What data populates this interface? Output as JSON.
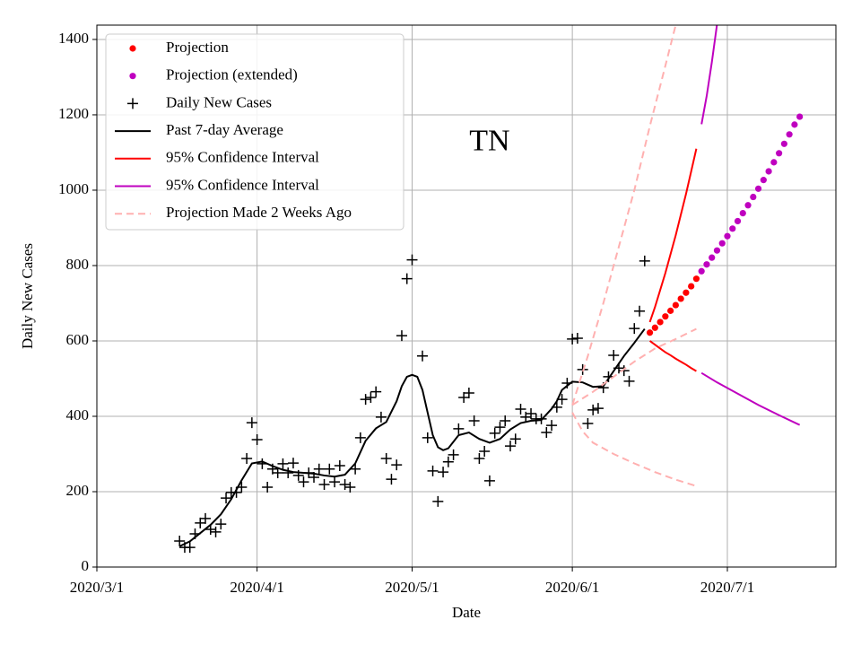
{
  "chart_data": {
    "type": "line",
    "xlabel": "Date",
    "ylabel": "Daily New Cases",
    "annotations": [
      {
        "text": "TN",
        "x": "2020-05-16",
        "y": 1124
      }
    ],
    "xlim": [
      "2020-03-01",
      "2020-07-22"
    ],
    "xticks": [
      {
        "value": "2020-03-01",
        "label": "2020/3/1"
      },
      {
        "value": "2020-04-01",
        "label": "2020/4/1"
      },
      {
        "value": "2020-05-01",
        "label": "2020/5/1"
      },
      {
        "value": "2020-06-01",
        "label": "2020/6/1"
      },
      {
        "value": "2020-07-01",
        "label": "2020/7/1"
      }
    ],
    "ylim": [
      0,
      1438
    ],
    "yticks": [
      0,
      200,
      400,
      600,
      800,
      1000,
      1200,
      1400
    ],
    "grid": true,
    "legend": "upper left",
    "series": [
      {
        "name": "Projection",
        "color": "#ff0000",
        "kind": "dots",
        "x": [
          "2020-06-16",
          "2020-06-17",
          "2020-06-18",
          "2020-06-19",
          "2020-06-20",
          "2020-06-21",
          "2020-06-22",
          "2020-06-23",
          "2020-06-24",
          "2020-06-25"
        ],
        "values": [
          622,
          635,
          650,
          665,
          680,
          695,
          712,
          728,
          745,
          765
        ]
      },
      {
        "name": "Projection (extended)",
        "color": "#bf00bf",
        "kind": "dots",
        "x": [
          "2020-06-26",
          "2020-06-27",
          "2020-06-28",
          "2020-06-29",
          "2020-06-30",
          "2020-07-01",
          "2020-07-02",
          "2020-07-03",
          "2020-07-04",
          "2020-07-05",
          "2020-07-06",
          "2020-07-07",
          "2020-07-08",
          "2020-07-09",
          "2020-07-10",
          "2020-07-11",
          "2020-07-12",
          "2020-07-13",
          "2020-07-14",
          "2020-07-15"
        ],
        "values": [
          785,
          803,
          821,
          840,
          859,
          878,
          898,
          918,
          939,
          960,
          982,
          1004,
          1027,
          1050,
          1074,
          1098,
          1123,
          1148,
          1174,
          1195
        ]
      },
      {
        "name": "Daily New Cases",
        "color": "#000000",
        "kind": "plus",
        "x": [
          "2020-03-17",
          "2020-03-18",
          "2020-03-19",
          "2020-03-20",
          "2020-03-21",
          "2020-03-22",
          "2020-03-23",
          "2020-03-24",
          "2020-03-25",
          "2020-03-26",
          "2020-03-27",
          "2020-03-28",
          "2020-03-29",
          "2020-03-30",
          "2020-03-31",
          "2020-04-01",
          "2020-04-02",
          "2020-04-03",
          "2020-04-04",
          "2020-04-05",
          "2020-04-06",
          "2020-04-07",
          "2020-04-08",
          "2020-04-09",
          "2020-04-10",
          "2020-04-11",
          "2020-04-12",
          "2020-04-13",
          "2020-04-14",
          "2020-04-15",
          "2020-04-16",
          "2020-04-17",
          "2020-04-18",
          "2020-04-19",
          "2020-04-20",
          "2020-04-21",
          "2020-04-22",
          "2020-04-23",
          "2020-04-24",
          "2020-04-25",
          "2020-04-26",
          "2020-04-27",
          "2020-04-28",
          "2020-04-29",
          "2020-04-30",
          "2020-05-01",
          "2020-05-03",
          "2020-05-04",
          "2020-05-05",
          "2020-05-06",
          "2020-05-07",
          "2020-05-08",
          "2020-05-09",
          "2020-05-10",
          "2020-05-11",
          "2020-05-12",
          "2020-05-13",
          "2020-05-14",
          "2020-05-15",
          "2020-05-16",
          "2020-05-17",
          "2020-05-18",
          "2020-05-19",
          "2020-05-20",
          "2020-05-21",
          "2020-05-22",
          "2020-05-23",
          "2020-05-24",
          "2020-05-25",
          "2020-05-26",
          "2020-05-27",
          "2020-05-28",
          "2020-05-29",
          "2020-05-30",
          "2020-05-31",
          "2020-06-01",
          "2020-06-02",
          "2020-06-03",
          "2020-06-04",
          "2020-06-05",
          "2020-06-06",
          "2020-06-07",
          "2020-06-08",
          "2020-06-09",
          "2020-06-10",
          "2020-06-11",
          "2020-06-12",
          "2020-06-13",
          "2020-06-14",
          "2020-06-15"
        ],
        "values": [
          69,
          52,
          52,
          88,
          117,
          129,
          100,
          93,
          114,
          183,
          198,
          198,
          212,
          288,
          383,
          338,
          274,
          212,
          260,
          250,
          274,
          250,
          276,
          243,
          226,
          250,
          238,
          260,
          219,
          260,
          226,
          269,
          219,
          212,
          260,
          343,
          445,
          450,
          465,
          398,
          288,
          233,
          271,
          614,
          765,
          815,
          560,
          343,
          255,
          174,
          252,
          279,
          298,
          367,
          450,
          462,
          388,
          288,
          307,
          229,
          355,
          371,
          388,
          321,
          340,
          419,
          398,
          407,
          393,
          393,
          357,
          376,
          424,
          445,
          488,
          605,
          607,
          524,
          381,
          417,
          421,
          476,
          505,
          562,
          528,
          521,
          493,
          633,
          679,
          812
        ]
      },
      {
        "name": "Past 7-day Average",
        "color": "#000000",
        "kind": "line",
        "lines": [
          {
            "x": [
              "2020-03-17",
              "2020-03-19",
              "2020-03-21",
              "2020-03-23",
              "2020-03-25",
              "2020-03-27",
              "2020-03-29",
              "2020-03-31",
              "2020-04-02",
              "2020-04-04",
              "2020-04-06",
              "2020-04-08",
              "2020-04-10",
              "2020-04-12",
              "2020-04-14",
              "2020-04-16",
              "2020-04-18",
              "2020-04-20",
              "2020-04-22",
              "2020-04-24",
              "2020-04-26",
              "2020-04-28",
              "2020-04-29",
              "2020-04-30",
              "2020-05-01",
              "2020-05-02",
              "2020-05-03",
              "2020-05-04",
              "2020-05-05",
              "2020-05-06",
              "2020-05-07",
              "2020-05-08",
              "2020-05-10",
              "2020-05-12",
              "2020-05-14",
              "2020-05-16",
              "2020-05-18",
              "2020-05-20",
              "2020-05-22",
              "2020-05-24",
              "2020-05-26",
              "2020-05-28",
              "2020-05-29",
              "2020-05-30",
              "2020-06-01",
              "2020-06-03",
              "2020-06-05",
              "2020-06-07",
              "2020-06-09",
              "2020-06-11",
              "2020-06-13",
              "2020-06-15"
            ],
            "values": [
              55,
              68,
              90,
              112,
              140,
              180,
              230,
              275,
              280,
              268,
              258,
              252,
              250,
              248,
              243,
              240,
              245,
              275,
              335,
              368,
              385,
              440,
              480,
              505,
              510,
              505,
              470,
              410,
              350,
              318,
              310,
              315,
              350,
              357,
              340,
              330,
              340,
              365,
              382,
              388,
              390,
              420,
              440,
              470,
              492,
              490,
              478,
              480,
              520,
              560,
              595,
              632
            ]
          }
        ]
      },
      {
        "name": "95% Confidence Interval",
        "color": "#ff0000",
        "kind": "line",
        "lines": [
          {
            "x": [
              "2020-06-16",
              "2020-06-17",
              "2020-06-18",
              "2020-06-19",
              "2020-06-20",
              "2020-06-21",
              "2020-06-22",
              "2020-06-23",
              "2020-06-24",
              "2020-06-25"
            ],
            "values": [
              650,
              690,
              735,
              780,
              830,
              880,
              935,
              990,
              1050,
              1110
            ]
          },
          {
            "x": [
              "2020-06-16",
              "2020-06-17",
              "2020-06-18",
              "2020-06-19",
              "2020-06-20",
              "2020-06-21",
              "2020-06-22",
              "2020-06-23",
              "2020-06-24",
              "2020-06-25"
            ],
            "values": [
              600,
              590,
              580,
              570,
              562,
              553,
              545,
              537,
              528,
              520
            ]
          }
        ]
      },
      {
        "name": "95% Confidence Interval",
        "color": "#bf00bf",
        "kind": "line",
        "lines": [
          {
            "x": [
              "2020-06-26",
              "2020-06-27",
              "2020-06-28",
              "2020-06-29"
            ],
            "values": [
              1175,
              1250,
              1340,
              1440
            ]
          },
          {
            "x": [
              "2020-06-26",
              "2020-06-29",
              "2020-07-03",
              "2020-07-07",
              "2020-07-11",
              "2020-07-15"
            ],
            "values": [
              515,
              490,
              460,
              430,
              403,
              377
            ]
          }
        ]
      },
      {
        "name": "Projection Made 2 Weeks Ago",
        "color": "#ffb0b0",
        "kind": "dashed",
        "lines": [
          {
            "x": [
              "2020-06-01",
              "2020-06-04",
              "2020-06-07",
              "2020-06-10",
              "2020-06-13",
              "2020-06-16",
              "2020-06-19",
              "2020-06-21"
            ],
            "values": [
              430,
              560,
              700,
              850,
              1000,
              1170,
              1330,
              1438
            ]
          },
          {
            "x": [
              "2020-06-01",
              "2020-06-05",
              "2020-06-09",
              "2020-06-13",
              "2020-06-17",
              "2020-06-21",
              "2020-06-25"
            ],
            "values": [
              430,
              465,
              505,
              545,
              580,
              605,
              632
            ]
          },
          {
            "x": [
              "2020-06-01",
              "2020-06-03",
              "2020-06-05",
              "2020-06-09",
              "2020-06-13",
              "2020-06-17",
              "2020-06-21",
              "2020-06-25"
            ],
            "values": [
              410,
              360,
              330,
              300,
              275,
              252,
              232,
              215
            ]
          }
        ]
      }
    ]
  }
}
